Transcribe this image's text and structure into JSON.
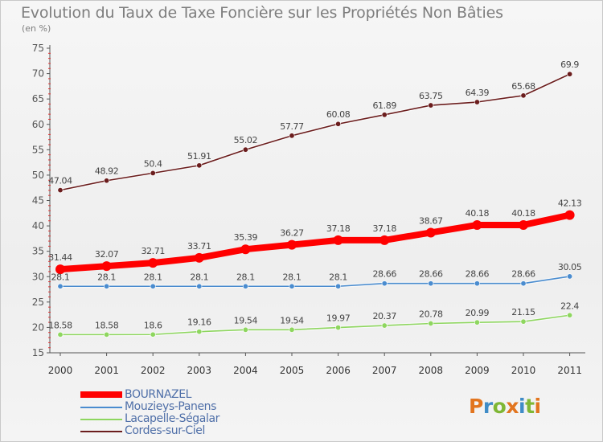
{
  "page": {
    "title": "Evolution du Taux de Taxe Foncière sur les Propriétés Non Bâties",
    "unit": "(en %)",
    "logo": {
      "text": "Proxiti",
      "colors": [
        "#e2751f",
        "#3f8cc7",
        "#7fb735",
        "#e2751f",
        "#3f8cc7",
        "#7fb735",
        "#e2751f"
      ]
    }
  },
  "chart_data": {
    "type": "line",
    "title": "Evolution du Taux de Taxe Foncière sur les Propriétés Non Bâties",
    "ylabel": "(en %)",
    "xlabel": "",
    "x": [
      "2000",
      "2001",
      "2002",
      "2003",
      "2004",
      "2005",
      "2006",
      "2007",
      "2008",
      "2009",
      "2010",
      "2011"
    ],
    "ylim": [
      15,
      75
    ],
    "yticks": [
      "15",
      "20",
      "25",
      "30",
      "35",
      "40",
      "45",
      "50",
      "55",
      "60",
      "65",
      "70",
      "75"
    ],
    "grid": false,
    "legend_position": "bottom-left",
    "series": [
      {
        "name": "BOURNAZEL",
        "color": "#ff0000",
        "width": "thick",
        "values": [
          31.44,
          32.07,
          32.71,
          33.71,
          35.39,
          36.27,
          37.18,
          37.18,
          38.67,
          40.18,
          40.18,
          42.13
        ],
        "labels": [
          "31.44",
          "32.07",
          "32.71",
          "33.71",
          "35.39",
          "36.27",
          "37.18",
          "37.18",
          "38.67",
          "40.18",
          "40.18",
          "42.13"
        ]
      },
      {
        "name": "Mouzieys-Panens",
        "color": "#4a8ccf",
        "width": "thin",
        "values": [
          28.1,
          28.1,
          28.1,
          28.1,
          28.1,
          28.1,
          28.1,
          28.66,
          28.66,
          28.66,
          28.66,
          30.05
        ],
        "labels": [
          "28.1",
          "28.1",
          "28.1",
          "28.1",
          "28.1",
          "28.1",
          "28.1",
          "28.66",
          "28.66",
          "28.66",
          "28.66",
          "30.05"
        ]
      },
      {
        "name": "Lacapelle-Ségalar",
        "color": "#8ed65f",
        "width": "thin",
        "values": [
          18.58,
          18.58,
          18.6,
          19.16,
          19.54,
          19.54,
          19.97,
          20.37,
          20.78,
          20.99,
          21.15,
          22.4
        ],
        "labels": [
          "18.58",
          "18.58",
          "18.6",
          "19.16",
          "19.54",
          "19.54",
          "19.97",
          "20.37",
          "20.78",
          "20.99",
          "21.15",
          "22.4"
        ]
      },
      {
        "name": "Cordes-sur-Ciel",
        "color": "#6b1d1d",
        "width": "thin",
        "values": [
          47.04,
          48.92,
          50.4,
          51.91,
          55.02,
          57.77,
          60.08,
          61.89,
          63.75,
          64.39,
          65.68,
          69.9
        ],
        "labels": [
          "47.04",
          "48.92",
          "50.4",
          "51.91",
          "55.02",
          "57.77",
          "60.08",
          "61.89",
          "63.75",
          "64.39",
          "65.68",
          "69.9"
        ]
      }
    ]
  }
}
